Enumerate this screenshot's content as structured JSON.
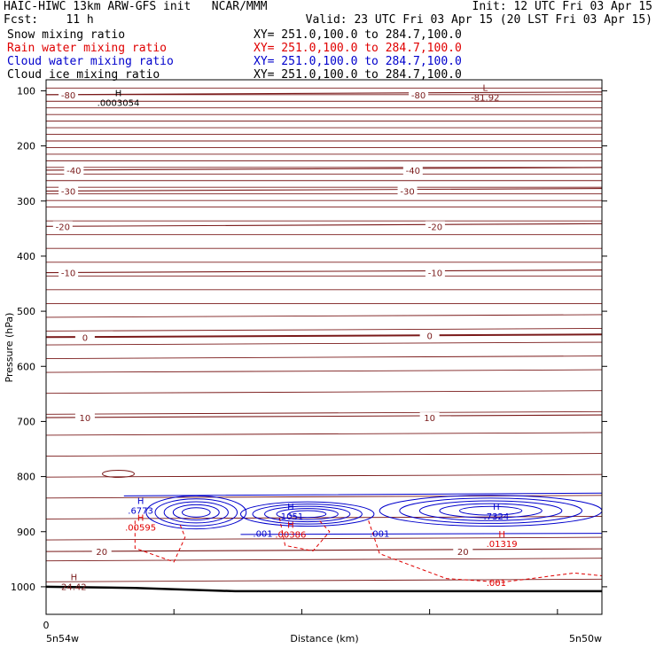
{
  "header": {
    "title": "HAIC-HIWC 13km ARW-GFS init   NCAR/MMM",
    "init": "Init: 12 UTC Fri 03 Apr 15",
    "fcst": "Fcst:    11 h",
    "valid": "Valid: 23 UTC Fri 03 Apr 15 (20 LST Fri 03 Apr 15)"
  },
  "fields": [
    {
      "name": "Snow mixing ratio",
      "xy": "XY= 251.0,100.0 to 284.7,100.0",
      "color": "#000000"
    },
    {
      "name": "Rain water mixing ratio",
      "xy": "XY= 251.0,100.0 to 284.7,100.0",
      "color": "#e00000"
    },
    {
      "name": "Cloud water mixing ratio",
      "xy": "XY= 251.0,100.0 to 284.7,100.0",
      "color": "#0000cc"
    },
    {
      "name": "Cloud ice mixing ratio",
      "xy": "XY= 251.0,100.0 to 284.7,100.0",
      "color": "#000000"
    }
  ],
  "chart_data": {
    "type": "line",
    "title": "",
    "xlabel": "Distance (km)",
    "ylabel": "Pressure (hPa)",
    "x_left_label": "5n54w",
    "x_right_label": "5n50w",
    "x_zero_label": "0",
    "yticks": [
      100,
      200,
      300,
      400,
      500,
      600,
      700,
      800,
      900,
      1000
    ],
    "ylim": [
      1050,
      80
    ],
    "colors": {
      "temperature": "#7a1a1a",
      "rain": "#e00000",
      "cloud": "#0000cc",
      "snow": "#000000",
      "terrain": "#000000"
    },
    "temperature_contours": [
      {
        "label": "-80",
        "p": 107
      },
      {
        "label": "-40",
        "p": 244
      },
      {
        "label": "-30",
        "p": 282
      },
      {
        "label": "-20",
        "p": 346
      },
      {
        "label": "-10",
        "p": 430
      },
      {
        "label": "0",
        "p": 547
      },
      {
        "label": "10",
        "p": 693
      },
      {
        "label": "20",
        "p": 936
      }
    ],
    "temperature_label_positions": [
      {
        "label": "-80",
        "x": 0.04,
        "p": 107
      },
      {
        "label": "-80",
        "x": 0.67,
        "p": 107
      },
      {
        "label": "-40",
        "x": 0.05,
        "p": 244
      },
      {
        "label": "-40",
        "x": 0.66,
        "p": 244
      },
      {
        "label": "-30",
        "x": 0.04,
        "p": 282
      },
      {
        "label": "-30",
        "x": 0.65,
        "p": 282
      },
      {
        "label": "-20",
        "x": 0.03,
        "p": 346
      },
      {
        "label": "-20",
        "x": 0.7,
        "p": 346
      },
      {
        "label": "-10",
        "x": 0.04,
        "p": 430
      },
      {
        "label": "-10",
        "x": 0.7,
        "p": 430
      },
      {
        "label": "0",
        "x": 0.07,
        "p": 547
      },
      {
        "label": "0",
        "x": 0.69,
        "p": 544
      },
      {
        "label": "10",
        "x": 0.07,
        "p": 693
      },
      {
        "label": "10",
        "x": 0.69,
        "p": 693
      },
      {
        "label": "20",
        "x": 0.1,
        "p": 936
      },
      {
        "label": "20",
        "x": 0.75,
        "p": 936
      }
    ],
    "cloud_water_labels": [
      {
        "label": ".001",
        "x": 0.39,
        "p": 903
      },
      {
        "label": ".001",
        "x": 0.6,
        "p": 903
      }
    ],
    "rain_labels": [
      {
        "label": ".001",
        "x": 0.81,
        "p": 992
      }
    ],
    "extrema": [
      {
        "type": "H",
        "value": ".0003054",
        "x": 0.13,
        "p": 110,
        "color": "#000000"
      },
      {
        "type": "L",
        "value": "-81.92",
        "x": 0.79,
        "p": 100,
        "color": "#7a1a1a"
      },
      {
        "type": "H",
        "value": ".6773",
        "x": 0.17,
        "p": 850,
        "color": "#0000cc"
      },
      {
        "type": "H",
        "value": ".00595",
        "x": 0.17,
        "p": 880,
        "color": "#e00000"
      },
      {
        "type": "H",
        "value": ".1051",
        "x": 0.44,
        "p": 860,
        "color": "#0000cc"
      },
      {
        "type": "H",
        "value": ".00386",
        "x": 0.44,
        "p": 893,
        "color": "#e00000"
      },
      {
        "type": "H",
        "value": ".7324",
        "x": 0.81,
        "p": 860,
        "color": "#0000cc"
      },
      {
        "type": "H",
        "value": ".01319",
        "x": 0.82,
        "p": 910,
        "color": "#e00000"
      },
      {
        "type": "H",
        "value": "24.42",
        "x": 0.05,
        "p": 988,
        "color": "#7a1a1a"
      }
    ],
    "surface_pressure": [
      {
        "x": 0.0,
        "p": 1000
      },
      {
        "x": 0.16,
        "p": 1002
      },
      {
        "x": 0.34,
        "p": 1008
      },
      {
        "x": 0.5,
        "p": 1008
      },
      {
        "x": 1.0,
        "p": 1008
      }
    ],
    "grid": false
  }
}
